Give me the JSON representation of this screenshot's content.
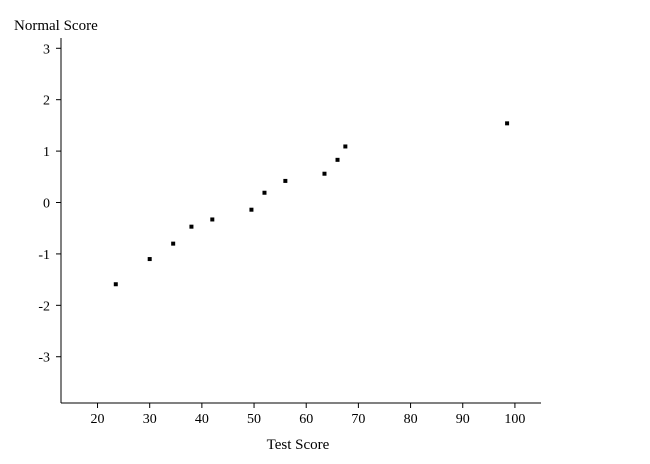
{
  "chart_data": {
    "type": "scatter",
    "title": "",
    "xlabel": "Test Score",
    "ylabel": "Normal Score",
    "xlim": [
      13,
      105
    ],
    "ylim": [
      -3.9,
      3.2
    ],
    "xticks": [
      "20",
      "30",
      "40",
      "50",
      "60",
      "70",
      "80",
      "90",
      "100"
    ],
    "yticks": [
      "3",
      "2",
      "1",
      "0",
      "-1",
      "-2",
      "-3"
    ],
    "grid": false,
    "legend": "none",
    "marker_color": "#000000",
    "points": [
      {
        "x": 23.5,
        "y": -1.59
      },
      {
        "x": 30,
        "y": -1.1
      },
      {
        "x": 34.5,
        "y": -0.8
      },
      {
        "x": 38,
        "y": -0.47
      },
      {
        "x": 42,
        "y": -0.33
      },
      {
        "x": 49.5,
        "y": -0.14
      },
      {
        "x": 52,
        "y": 0.19
      },
      {
        "x": 56,
        "y": 0.42
      },
      {
        "x": 63.5,
        "y": 0.56
      },
      {
        "x": 66,
        "y": 0.83
      },
      {
        "x": 67.5,
        "y": 1.09
      },
      {
        "x": 98.5,
        "y": 1.54
      }
    ]
  }
}
